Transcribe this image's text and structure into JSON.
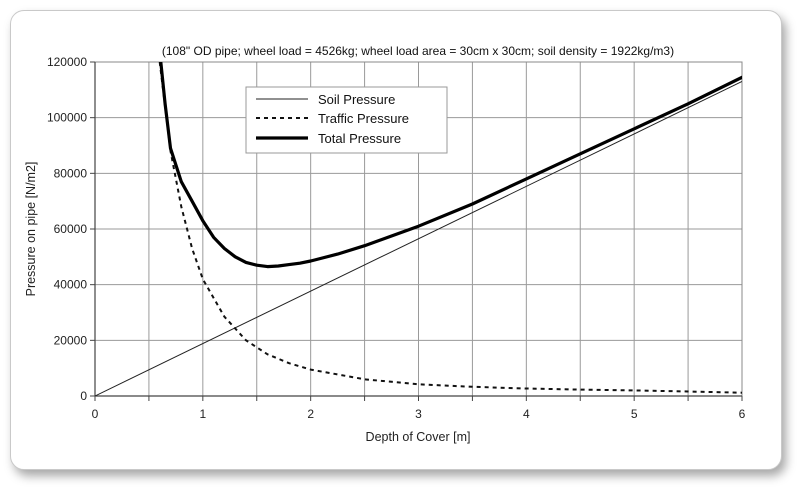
{
  "chart_data": {
    "type": "line",
    "title": "(108\" OD pipe; wheel load = 4526kg;  wheel load area = 30cm x 30cm; soil density = 1922kg/m3)",
    "xlabel": "Depth of Cover [m]",
    "ylabel": "Pressure on pipe [N/m2]",
    "xlim": [
      0,
      6
    ],
    "ylim": [
      0,
      120000
    ],
    "xticks": [
      0,
      1,
      2,
      3,
      4,
      5,
      6
    ],
    "yticks": [
      0,
      20000,
      40000,
      60000,
      80000,
      100000,
      120000
    ],
    "xtick_labels": [
      "0",
      "1",
      "2",
      "3",
      "4",
      "5",
      "6"
    ],
    "ytick_labels": [
      "0",
      "20000",
      "40000",
      "60000",
      "80000",
      "100000",
      "120000"
    ],
    "grid": true,
    "legend_position": "top-center",
    "series": [
      {
        "name": "Soil Pressure",
        "style": "thin-solid",
        "color": "#222222",
        "x": [
          0,
          6
        ],
        "y": [
          0,
          113000
        ]
      },
      {
        "name": "Traffic Pressure",
        "style": "dashed",
        "color": "#111111",
        "x": [
          0.6,
          0.7,
          0.8,
          0.9,
          1.0,
          1.2,
          1.4,
          1.6,
          1.8,
          2.0,
          2.5,
          3.0,
          3.5,
          4.0,
          4.5,
          5.0,
          5.5,
          6.0
        ],
        "y": [
          120000,
          88000,
          68000,
          53000,
          42000,
          28500,
          20000,
          15000,
          11800,
          9500,
          6000,
          4200,
          3300,
          2700,
          2300,
          2000,
          1600,
          1200
        ]
      },
      {
        "name": "Total Pressure",
        "style": "thick-solid",
        "color": "#000000",
        "x": [
          0.61,
          0.65,
          0.7,
          0.8,
          0.9,
          1.0,
          1.1,
          1.2,
          1.3,
          1.4,
          1.5,
          1.6,
          1.7,
          1.8,
          1.9,
          2.0,
          2.25,
          2.5,
          2.75,
          3.0,
          3.5,
          4.0,
          4.5,
          5.0,
          5.5,
          6.0
        ],
        "y": [
          120000,
          105000,
          89000,
          77000,
          70000,
          63000,
          57000,
          53000,
          50000,
          48000,
          47000,
          46500,
          46700,
          47200,
          47700,
          48500,
          51000,
          54000,
          57500,
          61000,
          69000,
          78000,
          87000,
          96000,
          105000,
          114500
        ]
      }
    ]
  }
}
